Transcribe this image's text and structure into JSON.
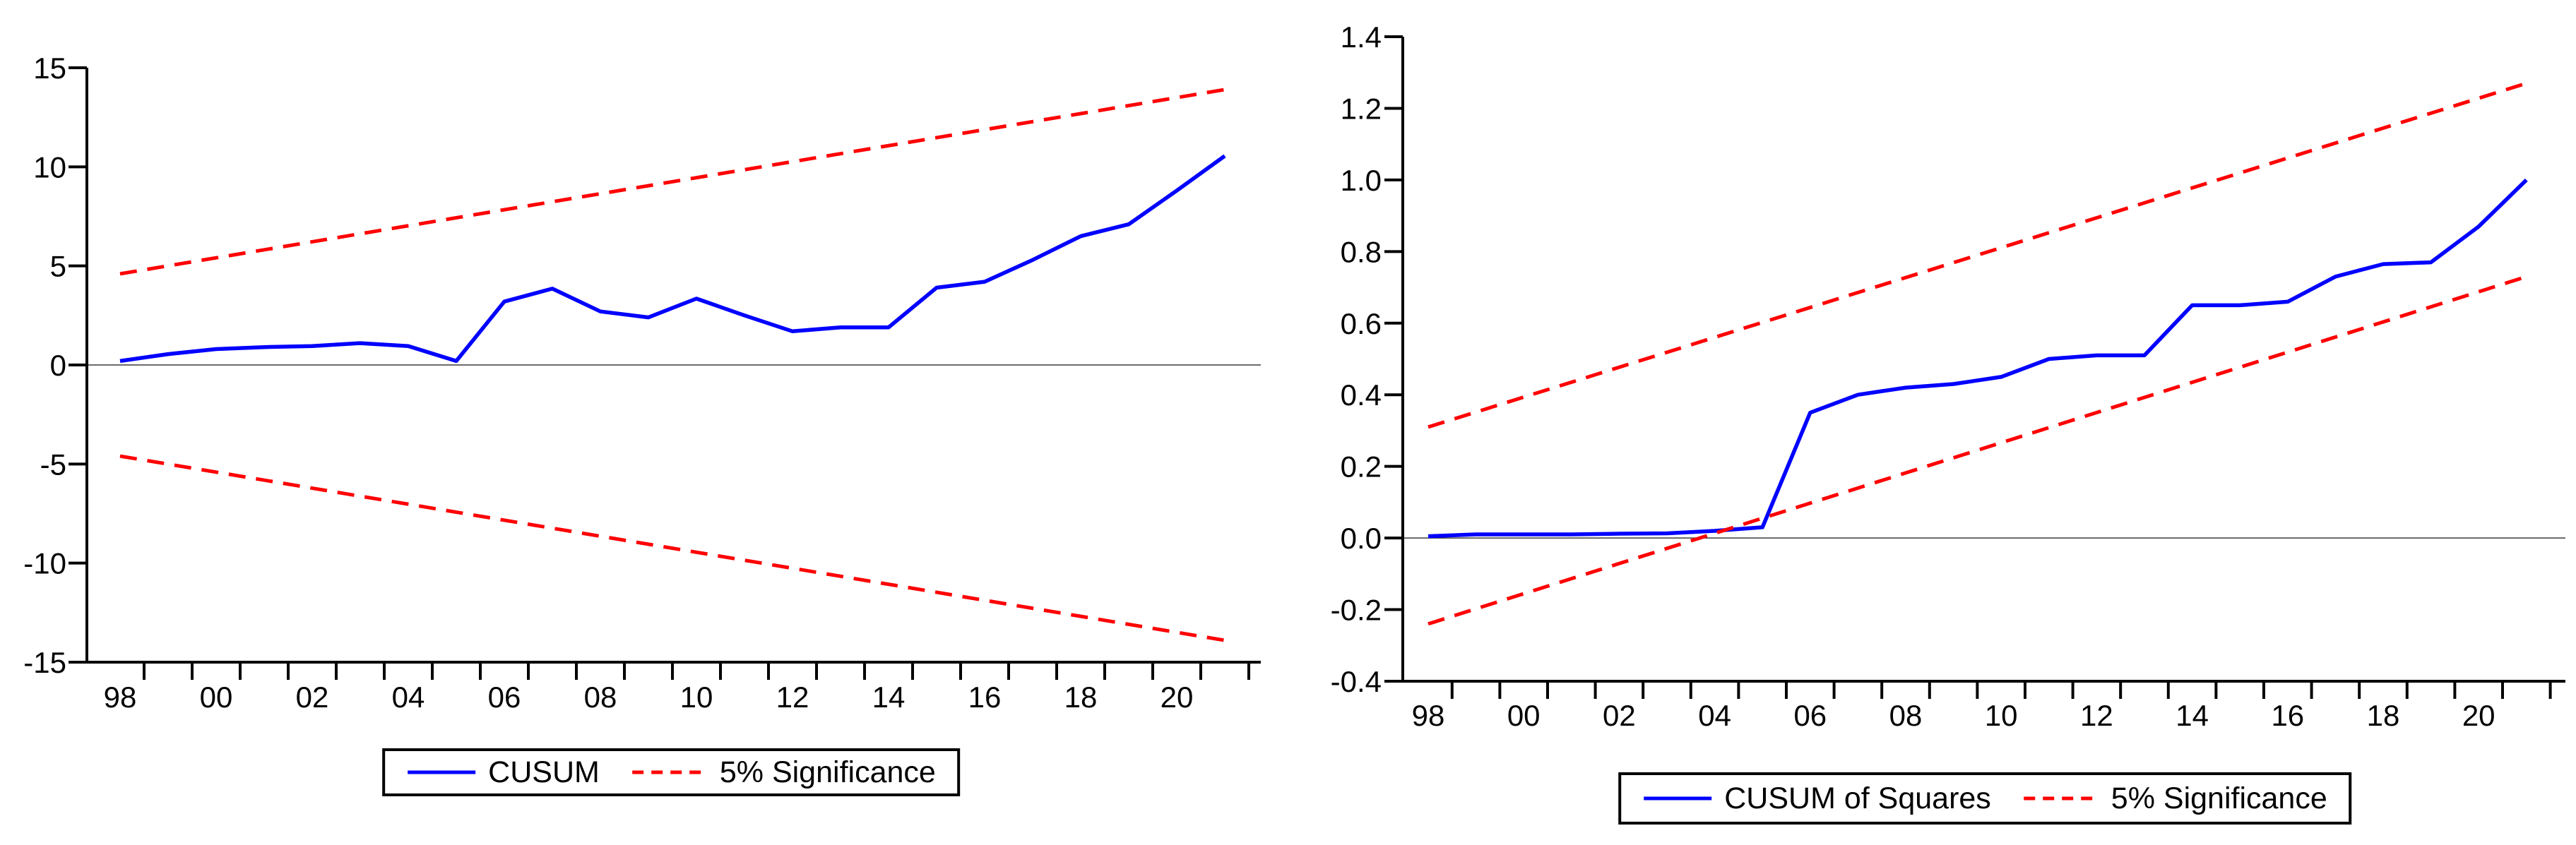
{
  "palette": {
    "series_blue": "#0000ff",
    "series_red": "#ff0000",
    "axis_black": "#000000",
    "zero_line_gray": "#3c3c3c",
    "background": "#ffffff"
  },
  "chart_data": [
    {
      "id": "cusum",
      "type": "line",
      "title": "",
      "xlabel": "",
      "ylabel": "",
      "x": [
        1998,
        1999,
        2000,
        2001,
        2002,
        2003,
        2004,
        2005,
        2006,
        2007,
        2008,
        2009,
        2010,
        2011,
        2012,
        2013,
        2014,
        2015,
        2016,
        2017,
        2018,
        2019,
        2020,
        2021
      ],
      "x_tick_labels": [
        "98",
        "00",
        "02",
        "04",
        "06",
        "08",
        "10",
        "12",
        "14",
        "16",
        "18",
        "20"
      ],
      "x_tick_years": [
        1998,
        2000,
        2002,
        2004,
        2006,
        2008,
        2010,
        2012,
        2014,
        2016,
        2018,
        2020
      ],
      "y_ticks": [
        15,
        10,
        5,
        0,
        -5,
        -10,
        -15
      ],
      "ylim": [
        -15,
        15
      ],
      "y_label_decimals": 0,
      "grid": false,
      "zero_line": 0,
      "series": [
        {
          "name": "CUSUM",
          "color": "#0000ff",
          "dashed": false,
          "values": [
            0.2,
            0.55,
            0.8,
            0.9,
            0.95,
            1.1,
            0.95,
            0.2,
            3.2,
            3.85,
            2.7,
            2.4,
            3.35,
            2.5,
            1.7,
            1.9,
            1.9,
            3.9,
            4.2,
            5.3,
            6.5,
            7.1,
            8.8,
            10.55
          ]
        },
        {
          "name": "5% Significance upper bound",
          "color": "#ff0000",
          "dashed": true,
          "endpoints": [
            4.6,
            13.9
          ]
        },
        {
          "name": "5% Significance lower bound",
          "color": "#ff0000",
          "dashed": true,
          "endpoints": [
            -4.6,
            -13.9
          ]
        }
      ],
      "legend": [
        {
          "label": "CUSUM",
          "color": "#0000ff",
          "dashed": false
        },
        {
          "label": "5% Significance",
          "color": "#ff0000",
          "dashed": true
        }
      ],
      "legend_position": "bottom-center"
    },
    {
      "id": "cusum-of-squares",
      "type": "line",
      "title": "",
      "xlabel": "",
      "ylabel": "",
      "x": [
        1998,
        1999,
        2000,
        2001,
        2002,
        2003,
        2004,
        2005,
        2006,
        2007,
        2008,
        2009,
        2010,
        2011,
        2012,
        2013,
        2014,
        2015,
        2016,
        2017,
        2018,
        2019,
        2020,
        2021
      ],
      "x_tick_labels": [
        "98",
        "00",
        "02",
        "04",
        "06",
        "08",
        "10",
        "12",
        "14",
        "16",
        "18",
        "20"
      ],
      "x_tick_years": [
        1998,
        2000,
        2002,
        2004,
        2006,
        2008,
        2010,
        2012,
        2014,
        2016,
        2018,
        2020
      ],
      "y_ticks": [
        1.4,
        1.2,
        1.0,
        0.8,
        0.6,
        0.4,
        0.2,
        0.0,
        -0.2,
        -0.4
      ],
      "ylim": [
        -0.4,
        1.4
      ],
      "y_label_decimals": 1,
      "grid": false,
      "zero_line": 0,
      "series": [
        {
          "name": "CUSUM of Squares",
          "color": "#0000ff",
          "dashed": false,
          "values": [
            0.005,
            0.01,
            0.01,
            0.01,
            0.012,
            0.013,
            0.02,
            0.03,
            0.35,
            0.4,
            0.42,
            0.43,
            0.45,
            0.5,
            0.51,
            0.51,
            0.65,
            0.65,
            0.66,
            0.73,
            0.765,
            0.77,
            0.87,
            1.0
          ]
        },
        {
          "name": "5% Significance upper bound",
          "color": "#ff0000",
          "dashed": true,
          "endpoints": [
            0.31,
            1.27
          ]
        },
        {
          "name": "5% Significance lower bound",
          "color": "#ff0000",
          "dashed": true,
          "endpoints": [
            -0.24,
            0.73
          ]
        }
      ],
      "legend": [
        {
          "label": "CUSUM of Squares",
          "color": "#0000ff",
          "dashed": false
        },
        {
          "label": "5% Significance",
          "color": "#ff0000",
          "dashed": true
        }
      ],
      "legend_position": "bottom-center"
    }
  ]
}
